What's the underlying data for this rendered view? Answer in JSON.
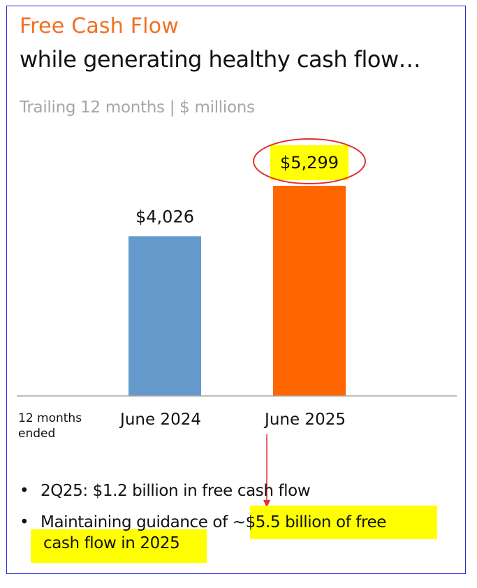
{
  "header": {
    "title": "Free Cash Flow",
    "subtitle": "while generating healthy cash flow…",
    "unit_note": "Trailing 12 months | $ millions"
  },
  "chart_data": {
    "type": "bar",
    "categories": [
      "June 2024",
      "June 2025"
    ],
    "values": [
      4026,
      5299
    ],
    "value_labels": [
      "$4,026",
      "$5,299"
    ],
    "bar_colors": [
      "#6699cc",
      "#ff6600"
    ],
    "x_period_label": "12 months ended",
    "highlighted_label": "$5,299",
    "highlight_color": "#ffff00",
    "circle_color": "#e03030"
  },
  "bullets": {
    "items": [
      {
        "text": "2Q25: $1.2 billion in free cash flow"
      },
      {
        "text_plain": "Maintaining guidance of ",
        "text_highlight_1": "~$5.5 billion of free",
        "text_highlight_2": "cash flow in 2025"
      }
    ],
    "bullet_char": "•"
  },
  "colors": {
    "title": "#f26f21",
    "frame": "#2b2bd6",
    "arrow": "#e03030"
  }
}
